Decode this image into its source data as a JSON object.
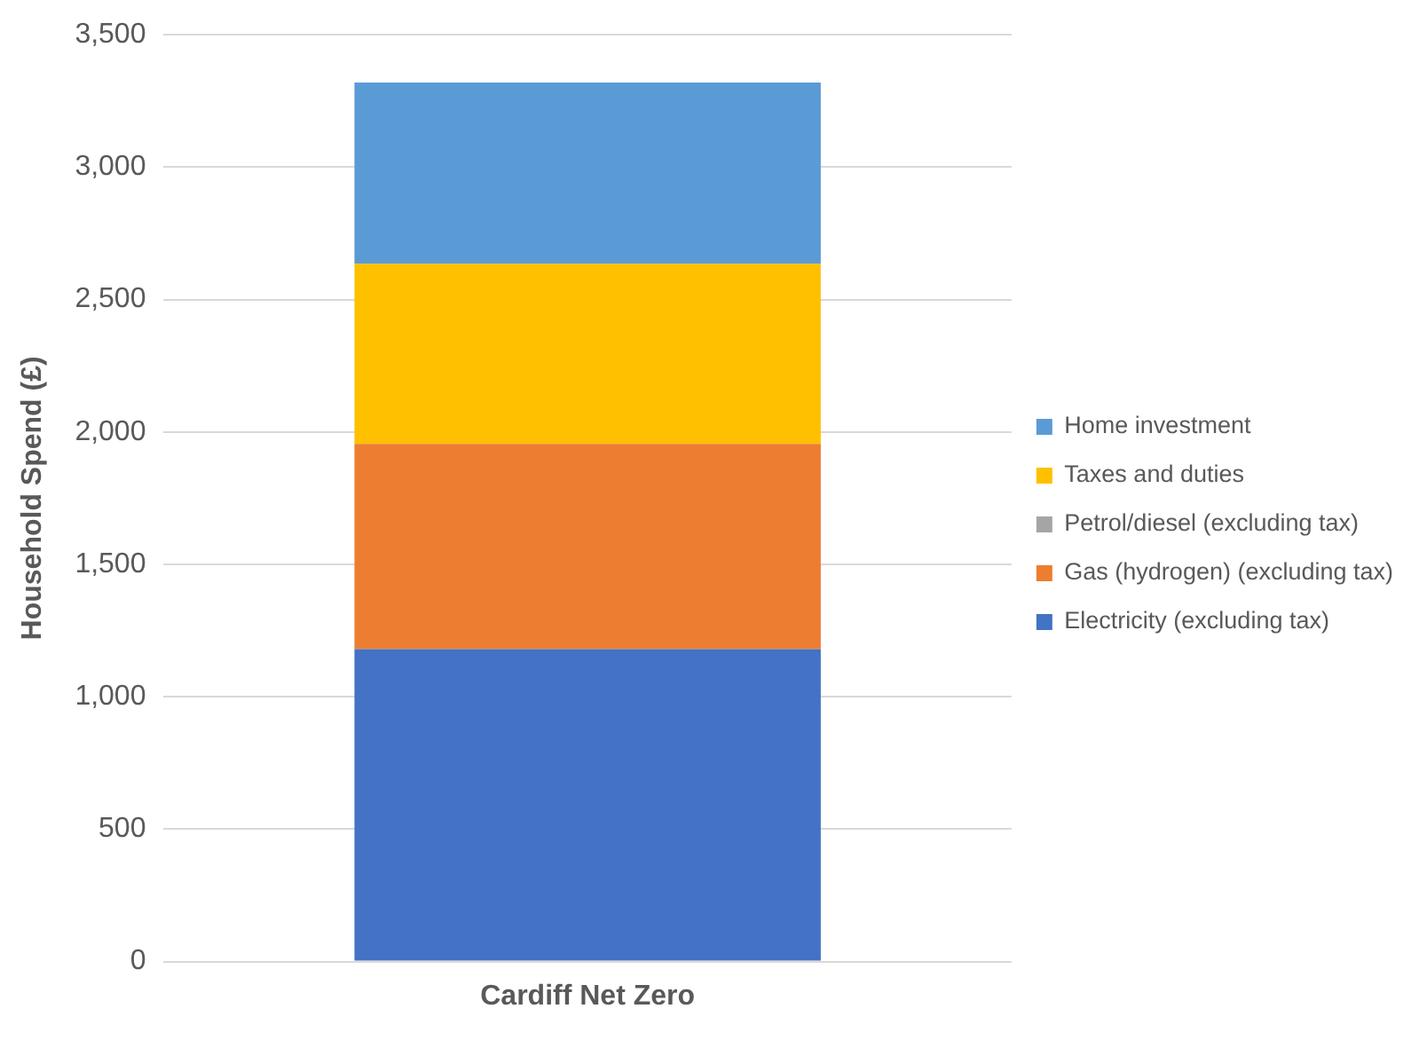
{
  "chart_data": {
    "type": "bar",
    "stacked": true,
    "ylabel": "Household Spend (£)",
    "categories": [
      "Cardiff Net Zero"
    ],
    "series": [
      {
        "name": "Electricity (excluding tax)",
        "color": "#4472c4",
        "values": [
          1180
        ]
      },
      {
        "name": "Gas (hydrogen) (excluding tax)",
        "color": "#ed7d31",
        "values": [
          775
        ]
      },
      {
        "name": "Petrol/diesel (excluding tax)",
        "color": "#a5a5a5",
        "values": [
          0
        ]
      },
      {
        "name": "Taxes and duties",
        "color": "#ffc000",
        "values": [
          680
        ]
      },
      {
        "name": "Home investment",
        "color": "#5b9bd5",
        "values": [
          685
        ]
      }
    ],
    "ylim": [
      0,
      3500
    ],
    "yticks": [
      0,
      500,
      {
        "value": 1000,
        "label": "1,000"
      },
      {
        "value": 1500,
        "label": "1,500"
      },
      {
        "value": 2000,
        "label": "2,000"
      },
      {
        "value": 2500,
        "label": "2,500"
      },
      {
        "value": 3000,
        "label": "3,000"
      },
      {
        "value": 3500,
        "label": "3,500"
      }
    ],
    "grid": "y",
    "legend": "right"
  }
}
